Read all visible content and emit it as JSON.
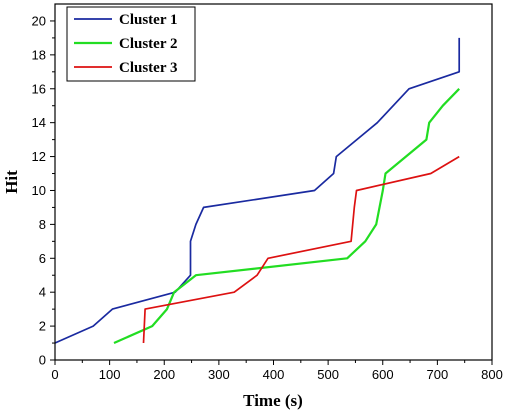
{
  "chart_data": {
    "type": "line",
    "xlabel": "Time (s)",
    "ylabel": "Hit",
    "xlim": [
      0,
      800
    ],
    "ylim": [
      0,
      21
    ],
    "x_ticks": [
      0,
      100,
      200,
      300,
      400,
      500,
      600,
      700,
      800
    ],
    "y_ticks": [
      0,
      2,
      4,
      6,
      8,
      10,
      12,
      14,
      16,
      18,
      20
    ],
    "grid": false,
    "legend_position": "top-left",
    "series": [
      {
        "name": "Cluster 1",
        "color": "#1a2aa0",
        "points": [
          [
            0,
            1
          ],
          [
            70,
            2
          ],
          [
            105,
            3
          ],
          [
            220,
            4
          ],
          [
            248,
            5
          ],
          [
            248,
            7
          ],
          [
            258,
            8
          ],
          [
            272,
            9
          ],
          [
            475,
            10
          ],
          [
            510,
            11
          ],
          [
            515,
            12
          ],
          [
            590,
            14
          ],
          [
            648,
            16
          ],
          [
            740,
            17
          ],
          [
            740,
            19
          ]
        ]
      },
      {
        "name": "Cluster 2",
        "color": "#22dd22",
        "points": [
          [
            108,
            1
          ],
          [
            178,
            2
          ],
          [
            205,
            3
          ],
          [
            218,
            4
          ],
          [
            258,
            5
          ],
          [
            535,
            6
          ],
          [
            568,
            7
          ],
          [
            588,
            8
          ],
          [
            600,
            10
          ],
          [
            605,
            11
          ],
          [
            680,
            13
          ],
          [
            685,
            14
          ],
          [
            710,
            15
          ],
          [
            740,
            16
          ]
        ]
      },
      {
        "name": "Cluster 3",
        "color": "#dd1111",
        "points": [
          [
            162,
            1
          ],
          [
            165,
            3
          ],
          [
            328,
            4
          ],
          [
            370,
            5
          ],
          [
            390,
            6
          ],
          [
            542,
            7
          ],
          [
            548,
            9
          ],
          [
            552,
            10
          ],
          [
            688,
            11
          ],
          [
            740,
            12
          ]
        ]
      }
    ]
  }
}
